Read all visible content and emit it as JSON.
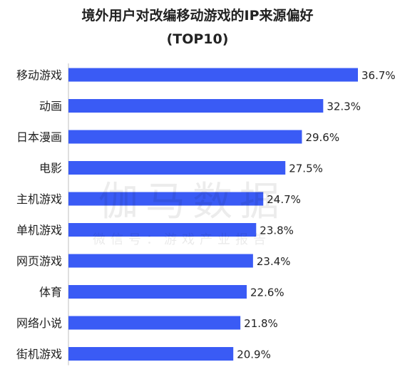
{
  "chart_data": {
    "type": "bar",
    "orientation": "horizontal",
    "title": "境外用户对改编移动游戏的IP来源偏好",
    "subtitle": "(TOP10)",
    "categories": [
      "移动游戏",
      "动画",
      "日本漫画",
      "电影",
      "主机游戏",
      "单机游戏",
      "网页游戏",
      "体育",
      "网络小说",
      "街机游戏"
    ],
    "values": [
      36.7,
      32.3,
      29.6,
      27.5,
      24.7,
      23.8,
      23.4,
      22.6,
      21.8,
      20.9
    ],
    "value_labels": [
      "36.7%",
      "32.3%",
      "29.6%",
      "27.5%",
      "24.7%",
      "23.8%",
      "23.4%",
      "22.6%",
      "21.8%",
      "20.9%"
    ],
    "xlim": [
      0,
      36.7
    ],
    "bar_color": "#3a5bf5",
    "grid": false,
    "legend": "none"
  },
  "watermark": {
    "main": "伽马数据",
    "sub": "微信号：游戏产业报告"
  }
}
